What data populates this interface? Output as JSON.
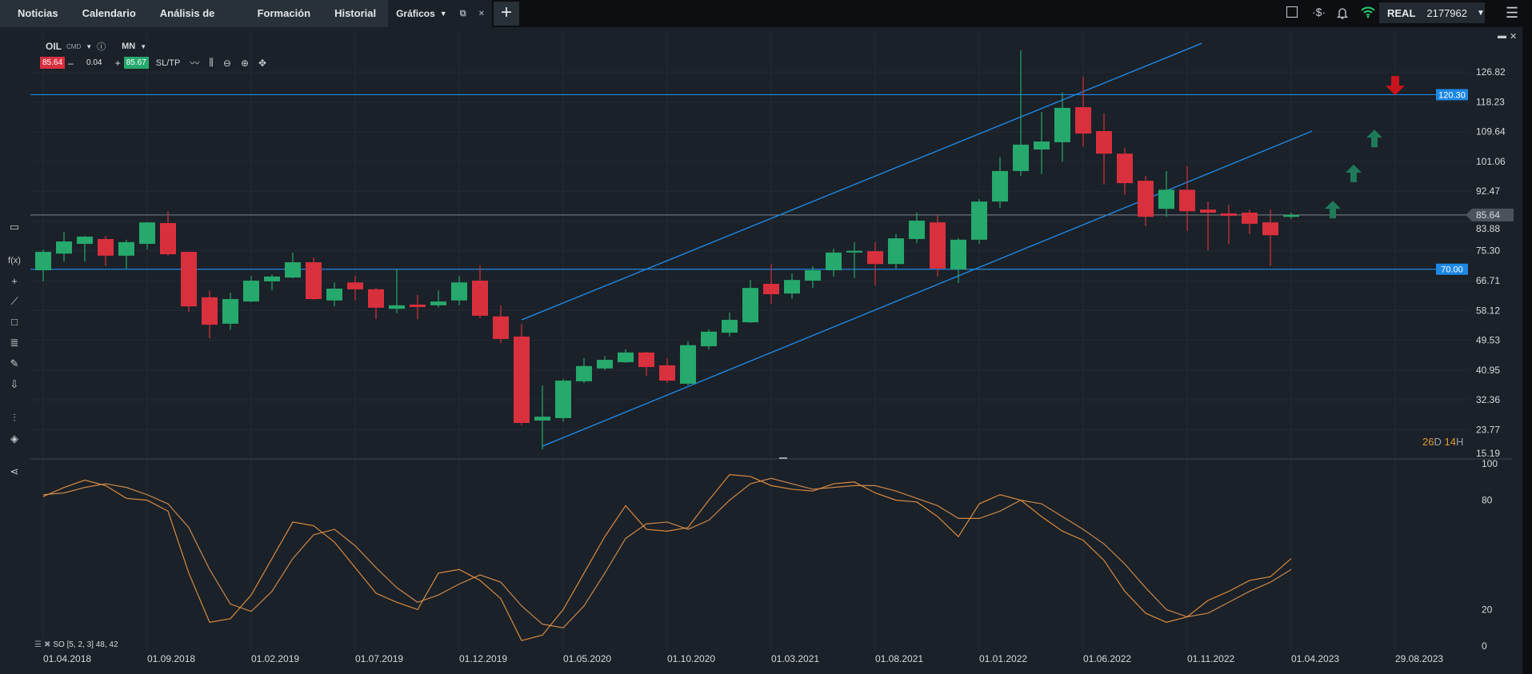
{
  "tabs": [
    {
      "label": "Noticias"
    },
    {
      "label": "Calendario"
    },
    {
      "label": "Análisis de mercado"
    },
    {
      "label": "Formación"
    },
    {
      "label": "Historial"
    },
    {
      "label": "Gráficos",
      "active": true
    }
  ],
  "tab_icons": {
    "popout": "popout-icon",
    "close": "×",
    "add": "+"
  },
  "account": {
    "mode": "REAL",
    "number": "2177962"
  },
  "instrument": {
    "symbol": "OIL",
    "type": "CMD",
    "timeframe": "MN"
  },
  "trade": {
    "bid": "85.64",
    "volume": "0.04",
    "ask": "85.67",
    "sltp": "SL/TP",
    "minus": "–",
    "plus": "+"
  },
  "countdown": {
    "days": "26",
    "d": "D",
    "hours": "14",
    "h": "H"
  },
  "indicator_label": "SO [5, 2, 3] 48, 42",
  "colors": {
    "up": "#26a96c",
    "down": "#d9303e",
    "line": "#1e88e5",
    "k": "#d98a3e",
    "d": "#c9864c"
  },
  "chart_data": {
    "type": "candlestick",
    "title": "OIL CMD MN",
    "price_axis": [
      "126.82",
      "118.23",
      "109.64",
      "101.06",
      "92.47",
      "83.88",
      "75.30",
      "66.71",
      "58.12",
      "49.53",
      "40.95",
      "32.36",
      "23.77",
      "15.19"
    ],
    "current_price": "85.64",
    "x_labels": [
      {
        "i": 0,
        "label": "01.04.2018"
      },
      {
        "i": 5,
        "label": "01.09.2018"
      },
      {
        "i": 10,
        "label": "01.02.2019"
      },
      {
        "i": 15,
        "label": "01.07.2019"
      },
      {
        "i": 20,
        "label": "01.12.2019"
      },
      {
        "i": 25,
        "label": "01.05.2020"
      },
      {
        "i": 30,
        "label": "01.10.2020"
      },
      {
        "i": 35,
        "label": "01.03.2021"
      },
      {
        "i": 40,
        "label": "01.08.2021"
      },
      {
        "i": 45,
        "label": "01.01.2022"
      },
      {
        "i": 50,
        "label": "01.06.2022"
      },
      {
        "i": 55,
        "label": "01.11.2022"
      },
      {
        "i": 60,
        "label": "01.04.2023"
      },
      {
        "i": 65,
        "label": "29.08.2023"
      }
    ],
    "ohlc": [
      [
        69.7,
        75.7,
        66.5,
        75.0
      ],
      [
        74.5,
        80.8,
        72.2,
        78.0
      ],
      [
        77.3,
        79.6,
        72.2,
        79.4
      ],
      [
        78.7,
        79.6,
        70.9,
        73.9
      ],
      [
        73.9,
        78.5,
        70.2,
        77.8
      ],
      [
        77.3,
        83.5,
        75.7,
        83.5
      ],
      [
        83.3,
        86.7,
        73.9,
        74.3
      ],
      [
        75.0,
        75.0,
        57.7,
        59.3
      ],
      [
        61.9,
        63.9,
        50.1,
        54.0
      ],
      [
        54.3,
        63.2,
        52.6,
        61.4
      ],
      [
        60.7,
        68.1,
        60.5,
        66.7
      ],
      [
        66.5,
        68.5,
        63.9,
        67.9
      ],
      [
        67.6,
        74.8,
        67.4,
        72.0
      ],
      [
        72.0,
        73.4,
        61.2,
        61.4
      ],
      [
        61.0,
        66.2,
        59.3,
        64.4
      ],
      [
        66.2,
        68.1,
        61.0,
        64.2
      ],
      [
        64.2,
        64.6,
        55.6,
        58.9
      ],
      [
        58.6,
        69.9,
        57.3,
        59.6
      ],
      [
        59.8,
        62.6,
        55.6,
        59.1
      ],
      [
        59.6,
        63.9,
        59.0,
        60.7
      ],
      [
        61.0,
        68.1,
        59.6,
        66.2
      ],
      [
        66.7,
        71.1,
        55.9,
        56.6
      ],
      [
        56.4,
        59.6,
        48.7,
        49.9
      ],
      [
        50.6,
        54.3,
        25.0,
        25.7
      ],
      [
        26.4,
        36.5,
        18.1,
        27.5
      ],
      [
        27.1,
        38.4,
        26.1,
        37.9
      ],
      [
        37.7,
        44.4,
        37.2,
        42.1
      ],
      [
        41.4,
        45.0,
        40.9,
        43.9
      ],
      [
        43.2,
        46.9,
        43.0,
        46.0
      ],
      [
        46.0,
        46.2,
        39.3,
        41.8
      ],
      [
        42.3,
        44.4,
        37.2,
        37.9
      ],
      [
        37.0,
        49.2,
        36.5,
        48.1
      ],
      [
        47.8,
        52.7,
        46.9,
        52.0
      ],
      [
        51.7,
        57.5,
        50.6,
        55.4
      ],
      [
        54.7,
        66.9,
        54.5,
        64.6
      ],
      [
        65.8,
        71.5,
        60.0,
        62.8
      ],
      [
        63.0,
        68.8,
        61.4,
        66.9
      ],
      [
        66.7,
        70.9,
        64.6,
        69.7
      ],
      [
        69.7,
        75.9,
        67.9,
        74.8
      ],
      [
        74.8,
        77.8,
        67.4,
        75.3
      ],
      [
        75.2,
        77.8,
        65.3,
        71.5
      ],
      [
        71.5,
        80.1,
        70.2,
        78.9
      ],
      [
        78.7,
        86.3,
        77.5,
        84.0
      ],
      [
        83.5,
        85.6,
        67.9,
        70.2
      ],
      [
        69.9,
        79.0,
        66.0,
        78.5
      ],
      [
        78.5,
        90.2,
        77.3,
        89.5
      ],
      [
        89.5,
        102.4,
        87.7,
        98.3
      ],
      [
        98.3,
        133.1,
        96.9,
        105.9
      ],
      [
        104.5,
        115.3,
        97.4,
        106.8
      ],
      [
        106.6,
        120.9,
        101.0,
        116.5
      ],
      [
        116.7,
        125.5,
        105.4,
        109.1
      ],
      [
        109.8,
        114.9,
        94.4,
        103.3
      ],
      [
        103.3,
        104.9,
        91.4,
        94.8
      ],
      [
        95.5,
        96.9,
        82.4,
        85.1
      ],
      [
        87.4,
        98.3,
        85.1,
        92.9
      ],
      [
        92.9,
        99.7,
        81.0,
        86.7
      ],
      [
        87.2,
        89.5,
        75.5,
        86.3
      ],
      [
        86.1,
        88.6,
        77.3,
        85.4
      ],
      [
        86.3,
        87.2,
        80.1,
        83.1
      ],
      [
        83.5,
        87.2,
        70.9,
        79.8
      ],
      [
        85.1,
        86.3,
        84.5,
        85.64
      ]
    ],
    "horizontal_lines": [
      {
        "price": 120.3,
        "label": "120.30"
      },
      {
        "price": 70.0,
        "label": "70.00"
      }
    ],
    "trend_lines": [
      {
        "from": [
          23.0,
          55.4
        ],
        "to": [
          55.7,
          135.1
        ]
      },
      {
        "from": [
          24.0,
          19.0
        ],
        "to": [
          61.0,
          109.8
        ]
      }
    ],
    "signals": [
      {
        "i": 62,
        "price": 87.2,
        "dir": "up"
      },
      {
        "i": 63,
        "price": 97.6,
        "dir": "up"
      },
      {
        "i": 64,
        "price": 107.7,
        "dir": "up"
      },
      {
        "i": 65,
        "price": 122.9,
        "dir": "down"
      }
    ],
    "oscillator": {
      "name": "SO [5, 2, 3]",
      "levels": [
        "100",
        "80",
        "20",
        "0"
      ],
      "ylim": [
        0,
        100
      ],
      "k": [
        82,
        87,
        91,
        88,
        81,
        80,
        74,
        40,
        13,
        15,
        28,
        48,
        68,
        66,
        57,
        43,
        29,
        24,
        20,
        40,
        42,
        36,
        26,
        3,
        6,
        20,
        40,
        60,
        77,
        64,
        63,
        65,
        80,
        94,
        93,
        88,
        86,
        85,
        89,
        90,
        84,
        80,
        79,
        71,
        60,
        78,
        83,
        80,
        71,
        63,
        58,
        47,
        30,
        18,
        13,
        16,
        25,
        30,
        36,
        38,
        48
      ],
      "d": [
        83,
        84,
        87,
        89,
        87,
        83,
        78,
        65,
        42,
        23,
        19,
        30,
        48,
        61,
        64,
        55,
        43,
        32,
        24,
        28,
        34,
        39,
        35,
        22,
        12,
        10,
        22,
        40,
        59,
        67,
        68,
        64,
        69,
        80,
        89,
        92,
        89,
        86,
        87,
        88,
        88,
        85,
        81,
        77,
        70,
        70,
        74,
        80,
        78,
        71,
        64,
        56,
        45,
        32,
        20,
        16,
        18,
        24,
        30,
        35,
        42
      ]
    }
  }
}
